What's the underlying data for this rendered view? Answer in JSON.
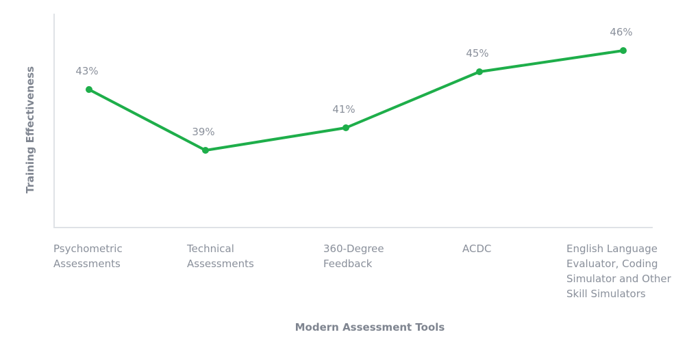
{
  "chart_data": {
    "type": "line",
    "title": "",
    "xlabel": "Modern Assessment Tools",
    "ylabel": "Training Effectiveness",
    "categories": [
      "Psychometric\nAssessments",
      "Technical\nAssessments",
      "360-Degree\nFeedback",
      "ACDC",
      "English Language\nEvaluator, Coding\nSimulator and Other\nSkill Simulators"
    ],
    "series": [
      {
        "name": "Training Effectiveness",
        "values": [
          43,
          39,
          41,
          45,
          46
        ],
        "color": "#1eae4a"
      }
    ],
    "data_labels": [
      "43%",
      "39%",
      "41%",
      "45%",
      "46%"
    ],
    "grid": false,
    "legend": "none"
  },
  "colors": {
    "line": "#1eae4a",
    "axis": "#dfe2e6",
    "text": "#8a909b"
  }
}
